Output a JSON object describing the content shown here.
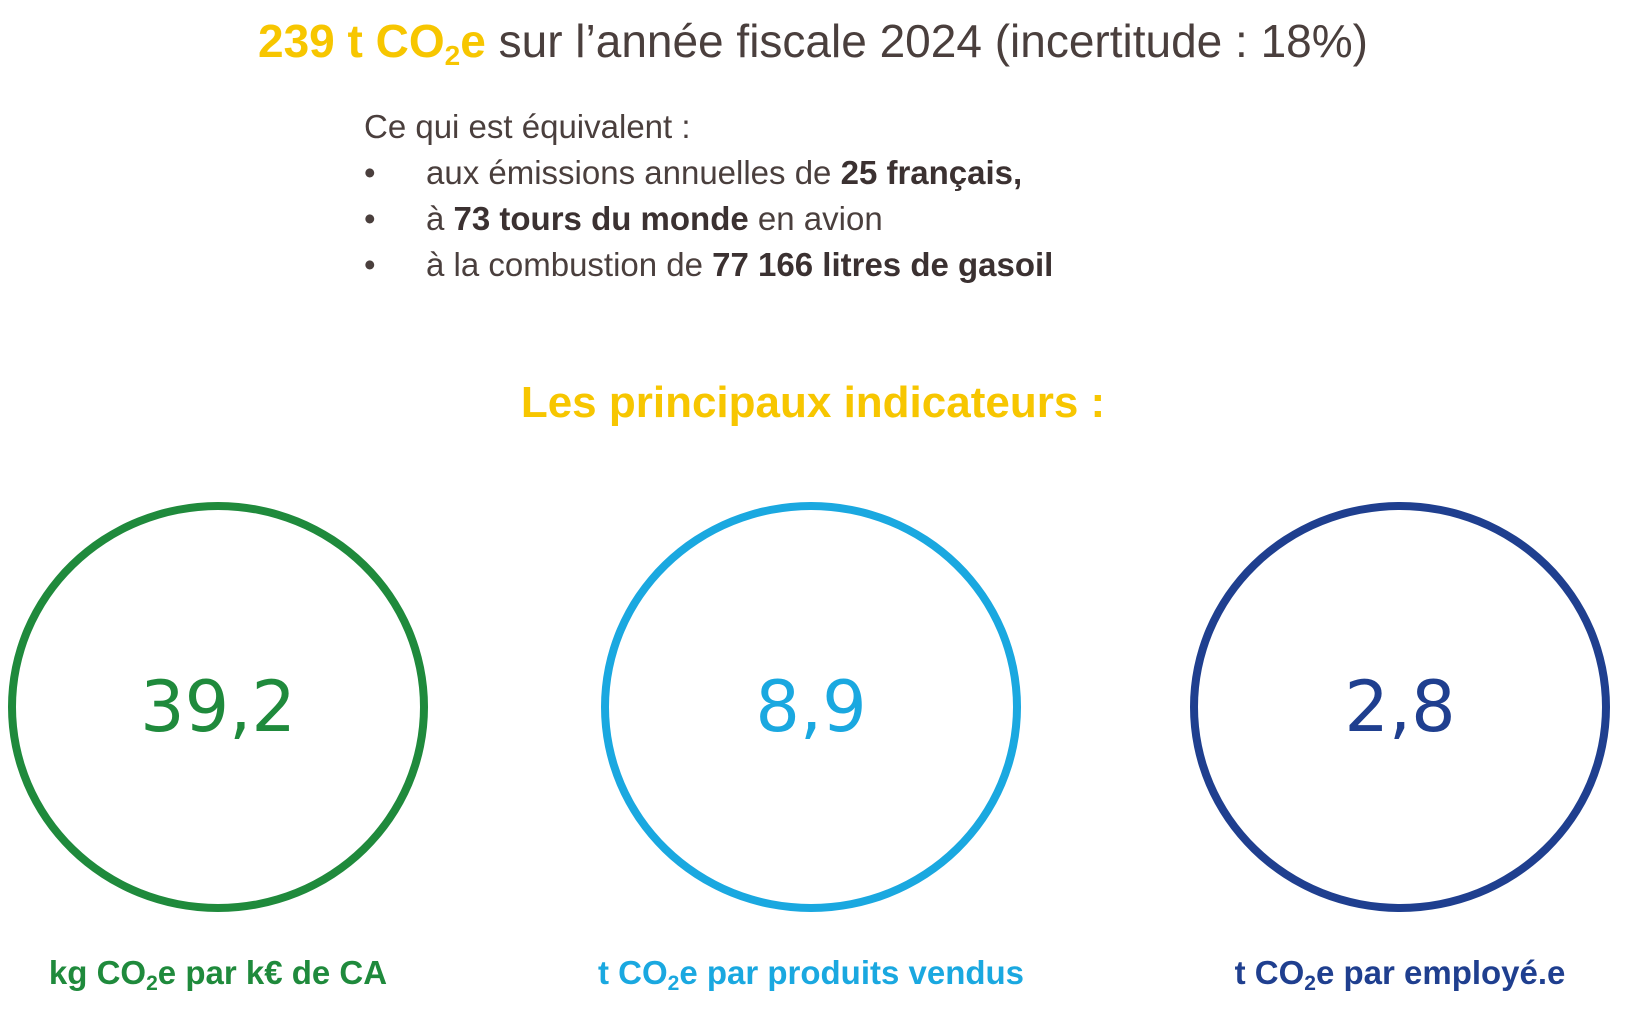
{
  "headline": {
    "amount": "239 t CO",
    "sub": "2",
    "unit_suffix": "e",
    "rest": " sur l’année fiscale 2024 (incertitude : 18%)"
  },
  "equivalent": {
    "intro": "Ce qui est équivalent :",
    "bullet": "•",
    "items": [
      {
        "pre": "aux émissions annuelles de ",
        "bold": "25 français,",
        "post": ""
      },
      {
        "pre": "à ",
        "bold": "73 tours du monde",
        "post": " en avion"
      },
      {
        "pre": "à la combustion de ",
        "bold": "77 166 litres de gasoil",
        "post": ""
      }
    ]
  },
  "section_title": "Les principaux indicateurs :",
  "indicators": [
    {
      "value": "39,2",
      "label_pre": "kg CO",
      "label_sub": "2",
      "label_post": "e par k€ de CA",
      "color": "#1f8a3c"
    },
    {
      "value": "8,9",
      "label_pre": "t CO",
      "label_sub": "2",
      "label_post": "e par produits vendus",
      "color": "#1aa8e0"
    },
    {
      "value": "2,8",
      "label_pre": "t CO",
      "label_sub": "2",
      "label_post": "e par employé.e",
      "color": "#1f3f8f"
    }
  ],
  "colors": {
    "accent_yellow": "#f7c600",
    "text_dark": "#4a3f3d"
  }
}
